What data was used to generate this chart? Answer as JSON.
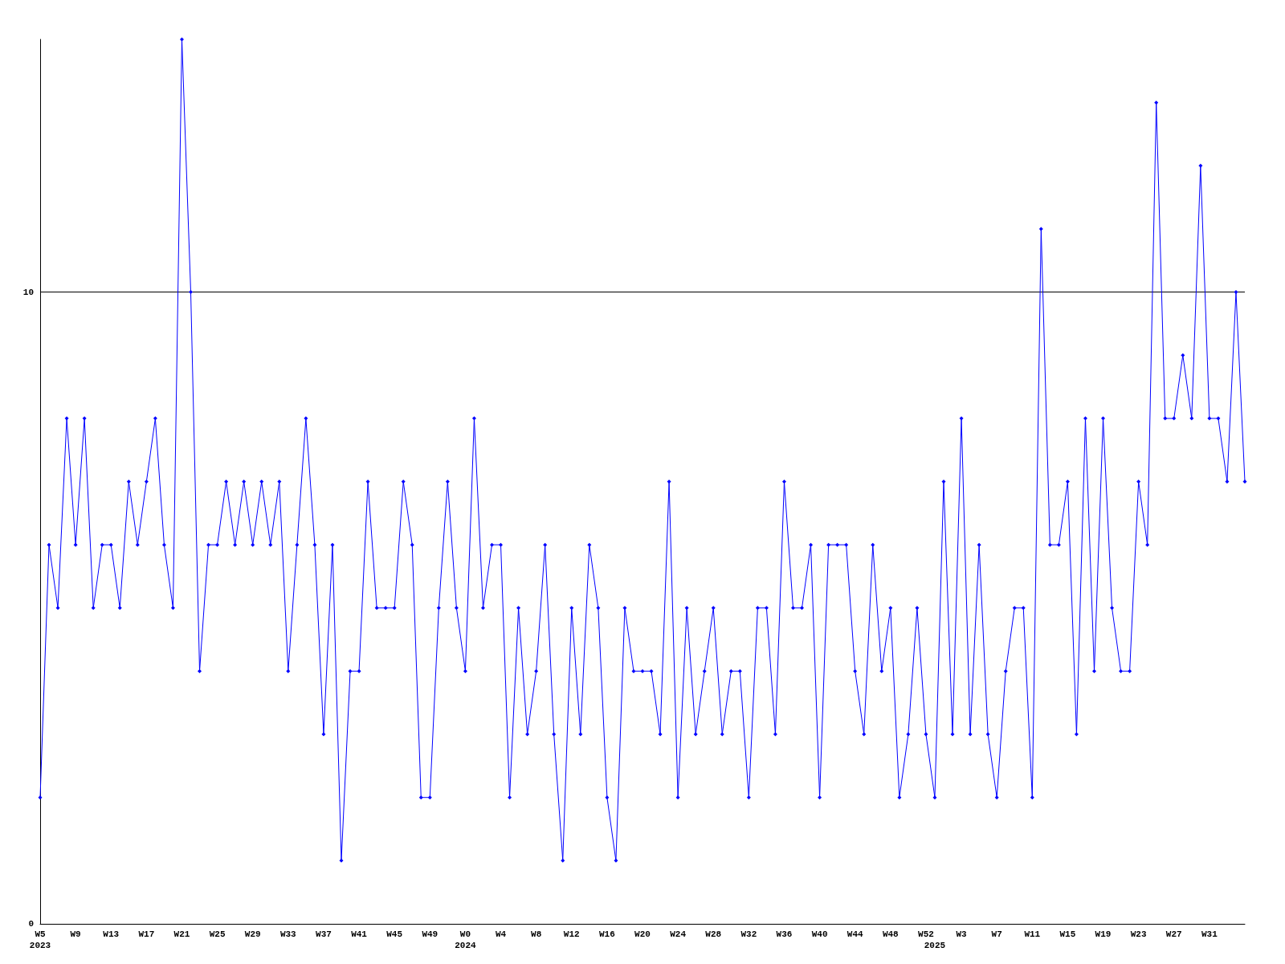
{
  "chart_data": {
    "type": "line",
    "categories": [
      "W5\n2023",
      null,
      null,
      null,
      "W9",
      null,
      null,
      null,
      "W13",
      null,
      null,
      null,
      "W17",
      null,
      null,
      null,
      "W21",
      null,
      null,
      null,
      "W25",
      null,
      null,
      null,
      "W29",
      null,
      null,
      null,
      "W33",
      null,
      null,
      null,
      "W37",
      null,
      null,
      null,
      "W41",
      null,
      null,
      null,
      "W45",
      null,
      null,
      null,
      "W49",
      null,
      null,
      null,
      "W0\n2024",
      null,
      null,
      null,
      "W4",
      null,
      null,
      null,
      "W8",
      null,
      null,
      null,
      "W12",
      null,
      null,
      null,
      "W16",
      null,
      null,
      null,
      "W20",
      null,
      null,
      null,
      "W24",
      null,
      null,
      null,
      "W28",
      null,
      null,
      null,
      "W32",
      null,
      null,
      null,
      "W36",
      null,
      null,
      null,
      "W40",
      null,
      null,
      null,
      "W44",
      null,
      null,
      null,
      "W48",
      null,
      null,
      null,
      "W52",
      "\n2025",
      null,
      null,
      "W3",
      null,
      null,
      null,
      "W7",
      null,
      null,
      null,
      "W11",
      null,
      null,
      null,
      "W15",
      null,
      null,
      null,
      "W19",
      null,
      null,
      null,
      "W23",
      null,
      null,
      null,
      "W27",
      null,
      null,
      null,
      "W31",
      null,
      null,
      null,
      null
    ],
    "series": [
      {
        "color": "#0000ff",
        "values": [
          2,
          6,
          5,
          8,
          6,
          8,
          5,
          6,
          6,
          5,
          7,
          6,
          7,
          8,
          6,
          5,
          14,
          10,
          4,
          6,
          6,
          7,
          6,
          7,
          6,
          7,
          6,
          7,
          4,
          6,
          8,
          6,
          3,
          6,
          1,
          4,
          4,
          7,
          5,
          5,
          5,
          7,
          6,
          2,
          2,
          5,
          7,
          5,
          4,
          8,
          5,
          6,
          6,
          2,
          5,
          3,
          4,
          6,
          3,
          1,
          5,
          3,
          6,
          5,
          2,
          1,
          5,
          4,
          4,
          4,
          3,
          7,
          2,
          5,
          3,
          4,
          5,
          3,
          4,
          4,
          2,
          5,
          5,
          3,
          7,
          5,
          5,
          6,
          2,
          6,
          6,
          6,
          4,
          3,
          6,
          4,
          5,
          2,
          3,
          5,
          3,
          2,
          7,
          3,
          8,
          3,
          6,
          3,
          2,
          4,
          5,
          5,
          2,
          11,
          6,
          6,
          7,
          3,
          8,
          4,
          8,
          5,
          4,
          4,
          7,
          6,
          13,
          8,
          8,
          9,
          8,
          12,
          8,
          8,
          7,
          10,
          7
        ]
      }
    ],
    "ylim": [
      0,
      14
    ],
    "yticks": [
      0,
      10
    ],
    "grid": "y",
    "marker": "diamond",
    "line_style": "solid"
  }
}
